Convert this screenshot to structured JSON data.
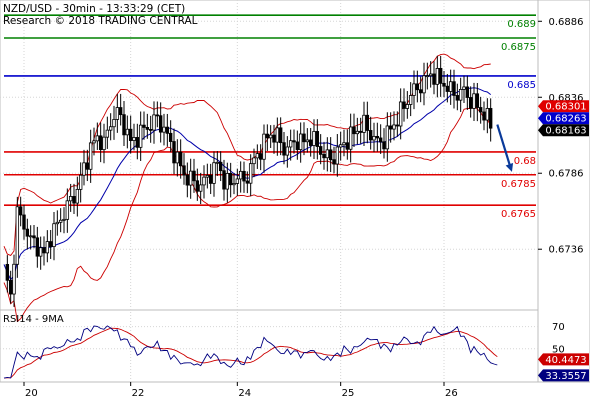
{
  "header": {
    "line1": "NZD/USD - 30min - 13:33:29 (CET)",
    "line2": "Research © 2018 TRADING CENTRAL"
  },
  "rsi_title": "RSI14 - 9MA",
  "colors": {
    "resistance": "#008000",
    "pivot": "#0000cc",
    "support": "#e00000",
    "bollinger": "#cc0000",
    "ma": "#0000aa",
    "candles": "#000000",
    "arrow": "#0a3a9a",
    "rsi": "#000080",
    "rsi_ma": "#cc0000",
    "tag_current": "#000000",
    "tag_upper": "#e00000",
    "tag_ma": "#0000cc"
  },
  "chart_data": [
    {
      "type": "line",
      "title": "NZD/USD - 30min",
      "y_ticks": [
        {
          "value": 0.6886,
          "label": "0.6886"
        },
        {
          "value": 0.6836,
          "label": "0.6836"
        },
        {
          "value": 0.6786,
          "label": "0.6786"
        },
        {
          "value": 0.6736,
          "label": "0.6736"
        }
      ],
      "ylim": [
        0.6696,
        0.69
      ],
      "x_ticks": [
        {
          "index": 6,
          "label": "20"
        },
        {
          "index": 38,
          "label": "22"
        },
        {
          "index": 70,
          "label": "24"
        },
        {
          "index": 101,
          "label": "25"
        },
        {
          "index": 132,
          "label": "26"
        }
      ],
      "x_count": 160,
      "levels": [
        {
          "value": 0.689,
          "label": "0.689",
          "kind": "resistance"
        },
        {
          "value": 0.6875,
          "label": "0.6875",
          "kind": "resistance"
        },
        {
          "value": 0.685,
          "label": "0.685",
          "kind": "pivot"
        },
        {
          "value": 0.68,
          "label": "0.68",
          "kind": "support"
        },
        {
          "value": 0.6785,
          "label": "0.6785",
          "kind": "support"
        },
        {
          "value": 0.6765,
          "label": "0.6765",
          "kind": "support"
        }
      ],
      "price_tags": [
        {
          "value": 0.68301,
          "label": "0.68301",
          "kind": "upper"
        },
        {
          "value": 0.68263,
          "label": "0.68263",
          "kind": "ma"
        },
        {
          "value": 0.68163,
          "label": "0.68163",
          "kind": "current"
        }
      ],
      "price_anchors": [
        [
          0,
          0.6723
        ],
        [
          2,
          0.6705
        ],
        [
          4,
          0.676
        ],
        [
          6,
          0.6752
        ],
        [
          8,
          0.6742
        ],
        [
          10,
          0.6738
        ],
        [
          12,
          0.6732
        ],
        [
          14,
          0.6745
        ],
        [
          16,
          0.6752
        ],
        [
          18,
          0.676
        ],
        [
          20,
          0.6768
        ],
        [
          22,
          0.6775
        ],
        [
          24,
          0.679
        ],
        [
          26,
          0.6802
        ],
        [
          28,
          0.681
        ],
        [
          30,
          0.6805
        ],
        [
          32,
          0.682
        ],
        [
          34,
          0.6826
        ],
        [
          36,
          0.6818
        ],
        [
          38,
          0.6806
        ],
        [
          40,
          0.681
        ],
        [
          42,
          0.6815
        ],
        [
          44,
          0.6818
        ],
        [
          46,
          0.6822
        ],
        [
          48,
          0.6815
        ],
        [
          50,
          0.6805
        ],
        [
          52,
          0.6795
        ],
        [
          54,
          0.6785
        ],
        [
          56,
          0.6782
        ],
        [
          58,
          0.6778
        ],
        [
          60,
          0.678
        ],
        [
          62,
          0.6786
        ],
        [
          64,
          0.6792
        ],
        [
          66,
          0.6782
        ],
        [
          68,
          0.6778
        ],
        [
          70,
          0.6785
        ],
        [
          72,
          0.678
        ],
        [
          74,
          0.679
        ],
        [
          76,
          0.6798
        ],
        [
          78,
          0.6806
        ],
        [
          80,
          0.6812
        ],
        [
          82,
          0.681
        ],
        [
          84,
          0.6802
        ],
        [
          86,
          0.6804
        ],
        [
          88,
          0.6808
        ],
        [
          90,
          0.6806
        ],
        [
          92,
          0.681
        ],
        [
          94,
          0.6804
        ],
        [
          96,
          0.6798
        ],
        [
          98,
          0.6795
        ],
        [
          100,
          0.68
        ],
        [
          102,
          0.6806
        ],
        [
          104,
          0.681
        ],
        [
          106,
          0.6815
        ],
        [
          108,
          0.6818
        ],
        [
          110,
          0.6812
        ],
        [
          112,
          0.6806
        ],
        [
          114,
          0.6808
        ],
        [
          116,
          0.6815
        ],
        [
          118,
          0.6822
        ],
        [
          120,
          0.683
        ],
        [
          122,
          0.6838
        ],
        [
          124,
          0.6842
        ],
        [
          126,
          0.6846
        ],
        [
          128,
          0.6852
        ],
        [
          130,
          0.6848
        ],
        [
          132,
          0.6845
        ],
        [
          134,
          0.684
        ],
        [
          136,
          0.6838
        ],
        [
          138,
          0.684
        ],
        [
          140,
          0.6834
        ],
        [
          142,
          0.683
        ],
        [
          144,
          0.6825
        ],
        [
          146,
          0.6818
        ]
      ],
      "forecast": {
        "from": [
          148,
          0.6818
        ],
        "to": [
          152,
          0.6792
        ]
      }
    },
    {
      "type": "line",
      "title": "RSI14 - 9MA",
      "y_ticks": [
        {
          "value": 70,
          "label": "70"
        },
        {
          "value": 50,
          "label": "50"
        }
      ],
      "ylim": [
        20,
        85
      ],
      "x_count": 160,
      "current_labels": [
        {
          "value": 40.4473,
          "label": "40.4473",
          "kind": "rsi_ma"
        },
        {
          "value": 33.3557,
          "label": "33.3557",
          "kind": "rsi"
        }
      ],
      "rsi_anchors": [
        [
          0,
          22
        ],
        [
          2,
          25
        ],
        [
          4,
          46
        ],
        [
          6,
          42
        ],
        [
          8,
          46
        ],
        [
          10,
          40
        ],
        [
          12,
          48
        ],
        [
          14,
          52
        ],
        [
          16,
          50
        ],
        [
          18,
          54
        ],
        [
          20,
          58
        ],
        [
          22,
          56
        ],
        [
          24,
          66
        ],
        [
          26,
          68
        ],
        [
          28,
          70
        ],
        [
          30,
          68
        ],
        [
          32,
          70
        ],
        [
          34,
          64
        ],
        [
          36,
          58
        ],
        [
          38,
          55
        ],
        [
          40,
          44
        ],
        [
          42,
          50
        ],
        [
          44,
          52
        ],
        [
          46,
          54
        ],
        [
          48,
          48
        ],
        [
          50,
          44
        ],
        [
          52,
          40
        ],
        [
          54,
          36
        ],
        [
          56,
          38
        ],
        [
          58,
          34
        ],
        [
          60,
          40
        ],
        [
          62,
          45
        ],
        [
          64,
          42
        ],
        [
          66,
          36
        ],
        [
          68,
          34
        ],
        [
          70,
          40
        ],
        [
          72,
          36
        ],
        [
          74,
          44
        ],
        [
          76,
          50
        ],
        [
          78,
          58
        ],
        [
          80,
          56
        ],
        [
          82,
          48
        ],
        [
          84,
          46
        ],
        [
          86,
          48
        ],
        [
          88,
          46
        ],
        [
          90,
          44
        ],
        [
          92,
          50
        ],
        [
          94,
          44
        ],
        [
          96,
          40
        ],
        [
          98,
          42
        ],
        [
          100,
          44
        ],
        [
          102,
          50
        ],
        [
          104,
          48
        ],
        [
          106,
          52
        ],
        [
          108,
          56
        ],
        [
          110,
          60
        ],
        [
          112,
          56
        ],
        [
          114,
          52
        ],
        [
          116,
          50
        ],
        [
          118,
          54
        ],
        [
          120,
          60
        ],
        [
          122,
          56
        ],
        [
          124,
          54
        ],
        [
          126,
          60
        ],
        [
          128,
          68
        ],
        [
          130,
          66
        ],
        [
          132,
          62
        ],
        [
          134,
          66
        ],
        [
          136,
          68
        ],
        [
          138,
          60
        ],
        [
          140,
          50
        ],
        [
          142,
          48
        ],
        [
          144,
          44
        ],
        [
          146,
          38
        ],
        [
          148,
          34
        ]
      ]
    }
  ]
}
